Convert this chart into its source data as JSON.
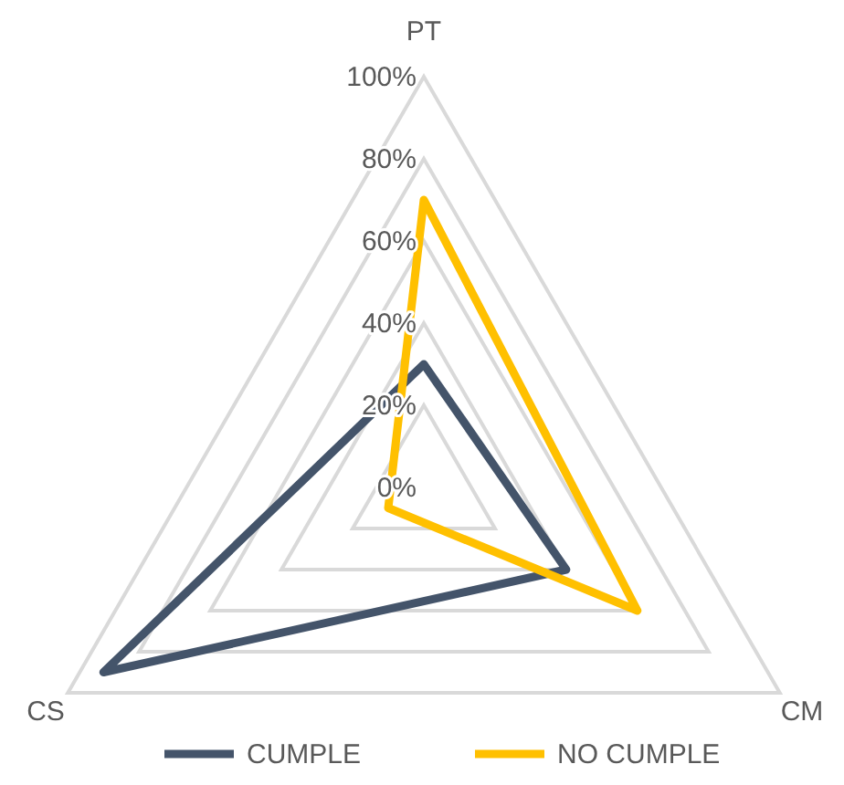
{
  "chart_data": {
    "type": "radar",
    "categories": [
      "PT",
      "CM",
      "CS"
    ],
    "series": [
      {
        "name": "CUMPLE",
        "color": "#44546a",
        "values": [
          30,
          40,
          90
        ]
      },
      {
        "name": "NO CUMPLE",
        "color": "#ffc000",
        "values": [
          70,
          60,
          10
        ]
      }
    ],
    "ylim": [
      0,
      100
    ],
    "yticks": [
      {
        "value": 0,
        "label": "0%"
      },
      {
        "value": 20,
        "label": "20%"
      },
      {
        "value": 40,
        "label": "40%"
      },
      {
        "value": 60,
        "label": "60%"
      },
      {
        "value": 80,
        "label": "80%"
      },
      {
        "value": 100,
        "label": "100%"
      }
    ],
    "grid": true,
    "legend": "bottom",
    "marker": "none",
    "line_style": "solid"
  }
}
